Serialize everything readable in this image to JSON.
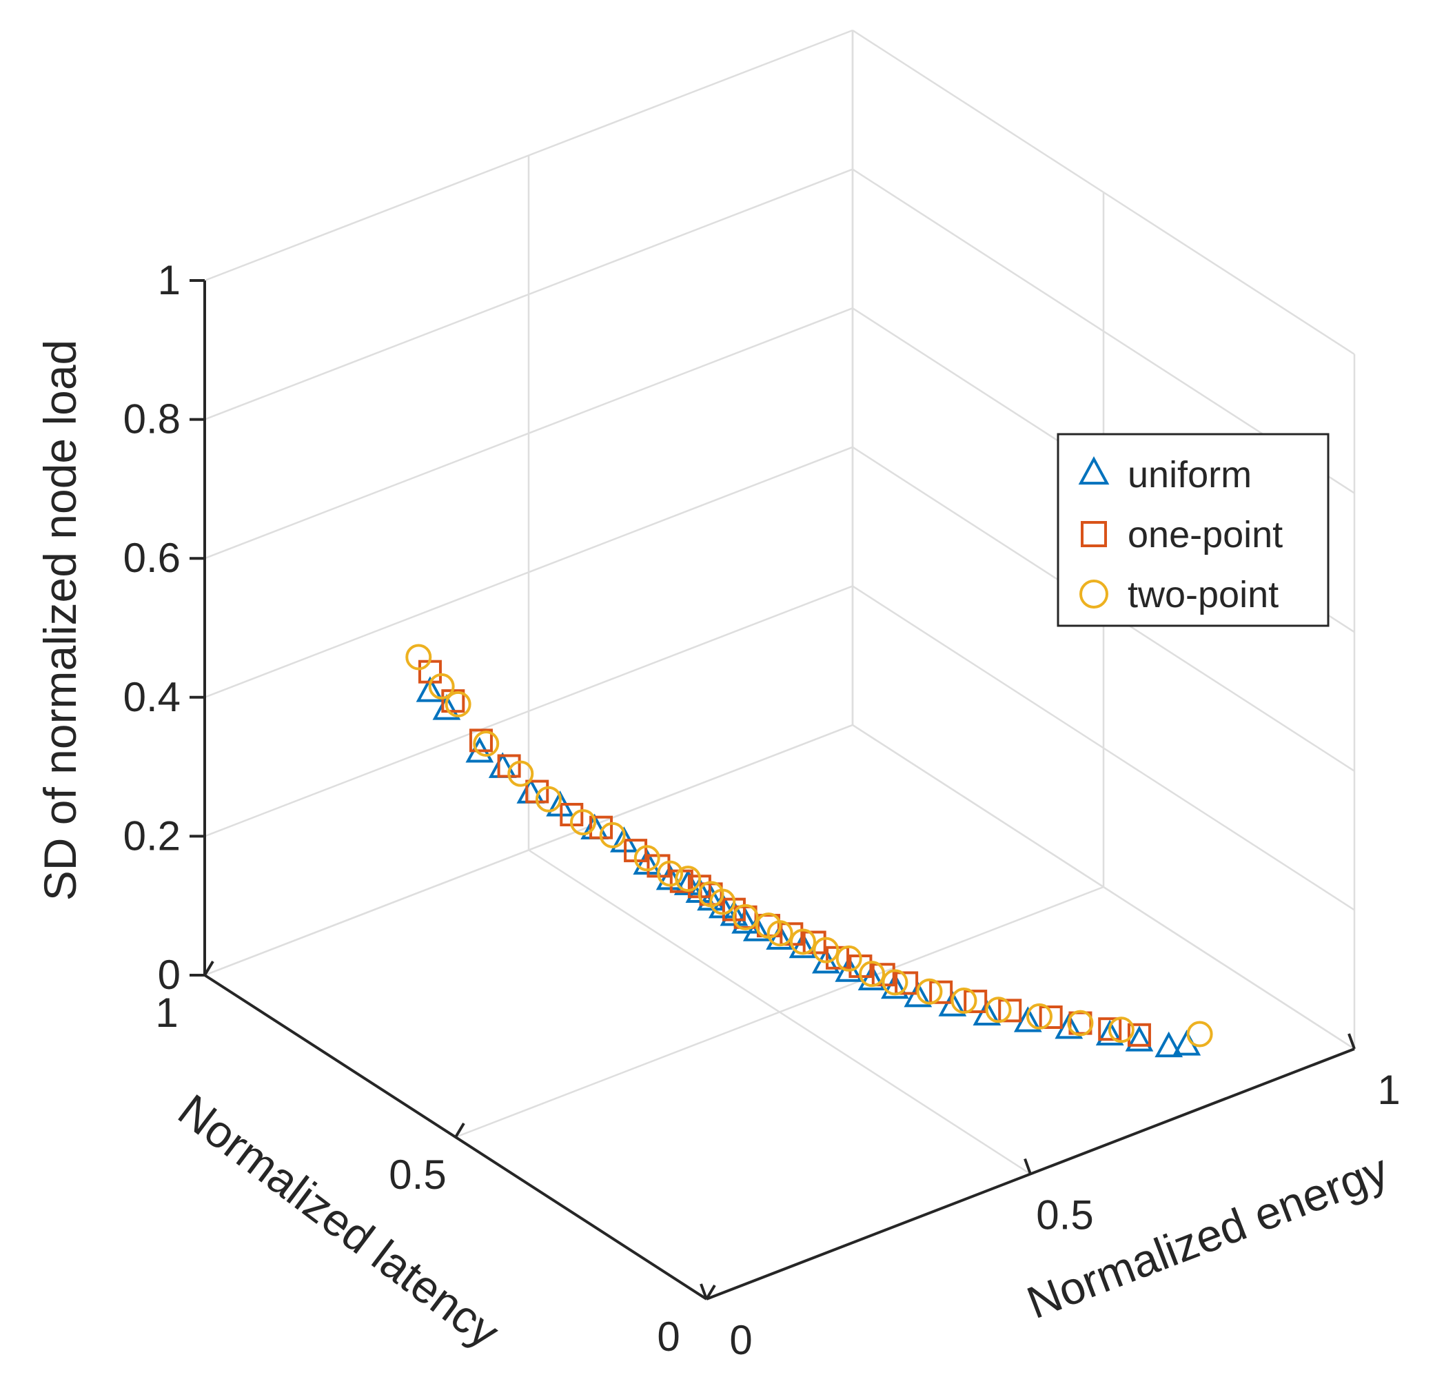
{
  "chart_data": {
    "type": "scatter3d",
    "title": "",
    "xlabel": "Normalized latency",
    "ylabel": "Normalized energy",
    "zlabel": "SD of normalized node load",
    "xlim": [
      0,
      1
    ],
    "ylim": [
      0,
      1
    ],
    "zlim": [
      0,
      1
    ],
    "x_ticks": [
      {
        "value": 0,
        "label": "0"
      },
      {
        "value": 0.5,
        "label": "0.5"
      },
      {
        "value": 1,
        "label": "1"
      }
    ],
    "y_ticks": [
      {
        "value": 0,
        "label": "0"
      },
      {
        "value": 0.5,
        "label": "0.5"
      },
      {
        "value": 1,
        "label": "1"
      }
    ],
    "z_ticks": [
      {
        "value": 0,
        "label": "0"
      },
      {
        "value": 0.2,
        "label": "0.2"
      },
      {
        "value": 0.4,
        "label": "0.4"
      },
      {
        "value": 0.6,
        "label": "0.6"
      },
      {
        "value": 0.8,
        "label": "0.8"
      },
      {
        "value": 1,
        "label": "1"
      }
    ],
    "grid": true,
    "legend_position": "right",
    "series": [
      {
        "name": "uniform",
        "marker": "triangle",
        "color": "#0072BD",
        "points": [
          [
            0.68,
            0.1,
            0.52
          ],
          [
            0.66,
            0.11,
            0.5
          ],
          [
            0.62,
            0.13,
            0.45
          ],
          [
            0.6,
            0.15,
            0.43
          ],
          [
            0.57,
            0.17,
            0.4
          ],
          [
            0.55,
            0.2,
            0.38
          ],
          [
            0.52,
            0.23,
            0.35
          ],
          [
            0.5,
            0.26,
            0.33
          ],
          [
            0.48,
            0.28,
            0.3
          ],
          [
            0.46,
            0.3,
            0.28
          ],
          [
            0.45,
            0.32,
            0.27
          ],
          [
            0.44,
            0.33,
            0.26
          ],
          [
            0.43,
            0.34,
            0.25
          ],
          [
            0.42,
            0.35,
            0.24
          ],
          [
            0.41,
            0.36,
            0.23
          ],
          [
            0.4,
            0.37,
            0.22
          ],
          [
            0.39,
            0.38,
            0.21
          ],
          [
            0.37,
            0.4,
            0.2
          ],
          [
            0.35,
            0.42,
            0.19
          ],
          [
            0.33,
            0.44,
            0.17
          ],
          [
            0.31,
            0.46,
            0.16
          ],
          [
            0.29,
            0.48,
            0.15
          ],
          [
            0.27,
            0.5,
            0.14
          ],
          [
            0.25,
            0.52,
            0.13
          ],
          [
            0.22,
            0.55,
            0.12
          ],
          [
            0.19,
            0.58,
            0.11
          ],
          [
            0.16,
            0.62,
            0.1
          ],
          [
            0.13,
            0.66,
            0.09
          ],
          [
            0.1,
            0.7,
            0.08
          ],
          [
            0.08,
            0.73,
            0.07
          ],
          [
            0.06,
            0.76,
            0.06
          ],
          [
            0.05,
            0.78,
            0.06
          ]
        ]
      },
      {
        "name": "one-point",
        "marker": "square",
        "color": "#D95319",
        "points": [
          [
            0.68,
            0.1,
            0.55
          ],
          [
            0.66,
            0.12,
            0.51
          ],
          [
            0.63,
            0.14,
            0.46
          ],
          [
            0.6,
            0.16,
            0.43
          ],
          [
            0.57,
            0.18,
            0.4
          ],
          [
            0.54,
            0.21,
            0.37
          ],
          [
            0.52,
            0.24,
            0.35
          ],
          [
            0.49,
            0.27,
            0.32
          ],
          [
            0.47,
            0.29,
            0.3
          ],
          [
            0.45,
            0.31,
            0.28
          ],
          [
            0.44,
            0.33,
            0.27
          ],
          [
            0.43,
            0.34,
            0.26
          ],
          [
            0.41,
            0.36,
            0.24
          ],
          [
            0.4,
            0.37,
            0.23
          ],
          [
            0.38,
            0.39,
            0.22
          ],
          [
            0.36,
            0.41,
            0.21
          ],
          [
            0.34,
            0.43,
            0.2
          ],
          [
            0.32,
            0.45,
            0.18
          ],
          [
            0.3,
            0.47,
            0.17
          ],
          [
            0.28,
            0.49,
            0.16
          ],
          [
            0.26,
            0.51,
            0.15
          ],
          [
            0.23,
            0.54,
            0.14
          ],
          [
            0.2,
            0.57,
            0.13
          ],
          [
            0.17,
            0.6,
            0.12
          ],
          [
            0.14,
            0.64,
            0.11
          ],
          [
            0.12,
            0.67,
            0.1
          ],
          [
            0.1,
            0.7,
            0.09
          ],
          [
            0.08,
            0.73,
            0.08
          ]
        ]
      },
      {
        "name": "two-point",
        "marker": "circle",
        "color": "#EDB120",
        "points": [
          [
            0.69,
            0.09,
            0.57
          ],
          [
            0.67,
            0.11,
            0.53
          ],
          [
            0.65,
            0.12,
            0.51
          ],
          [
            0.62,
            0.14,
            0.46
          ],
          [
            0.59,
            0.17,
            0.42
          ],
          [
            0.56,
            0.19,
            0.39
          ],
          [
            0.53,
            0.22,
            0.36
          ],
          [
            0.51,
            0.25,
            0.34
          ],
          [
            0.48,
            0.28,
            0.31
          ],
          [
            0.46,
            0.3,
            0.29
          ],
          [
            0.45,
            0.32,
            0.28
          ],
          [
            0.43,
            0.34,
            0.26
          ],
          [
            0.42,
            0.35,
            0.25
          ],
          [
            0.4,
            0.37,
            0.23
          ],
          [
            0.38,
            0.39,
            0.22
          ],
          [
            0.37,
            0.4,
            0.21
          ],
          [
            0.35,
            0.42,
            0.2
          ],
          [
            0.33,
            0.44,
            0.19
          ],
          [
            0.31,
            0.46,
            0.18
          ],
          [
            0.29,
            0.48,
            0.16
          ],
          [
            0.27,
            0.5,
            0.15
          ],
          [
            0.24,
            0.53,
            0.14
          ],
          [
            0.21,
            0.56,
            0.13
          ],
          [
            0.18,
            0.59,
            0.12
          ],
          [
            0.15,
            0.63,
            0.11
          ],
          [
            0.12,
            0.67,
            0.1
          ],
          [
            0.09,
            0.71,
            0.09
          ],
          [
            0.05,
            0.8,
            0.07
          ]
        ]
      }
    ]
  }
}
